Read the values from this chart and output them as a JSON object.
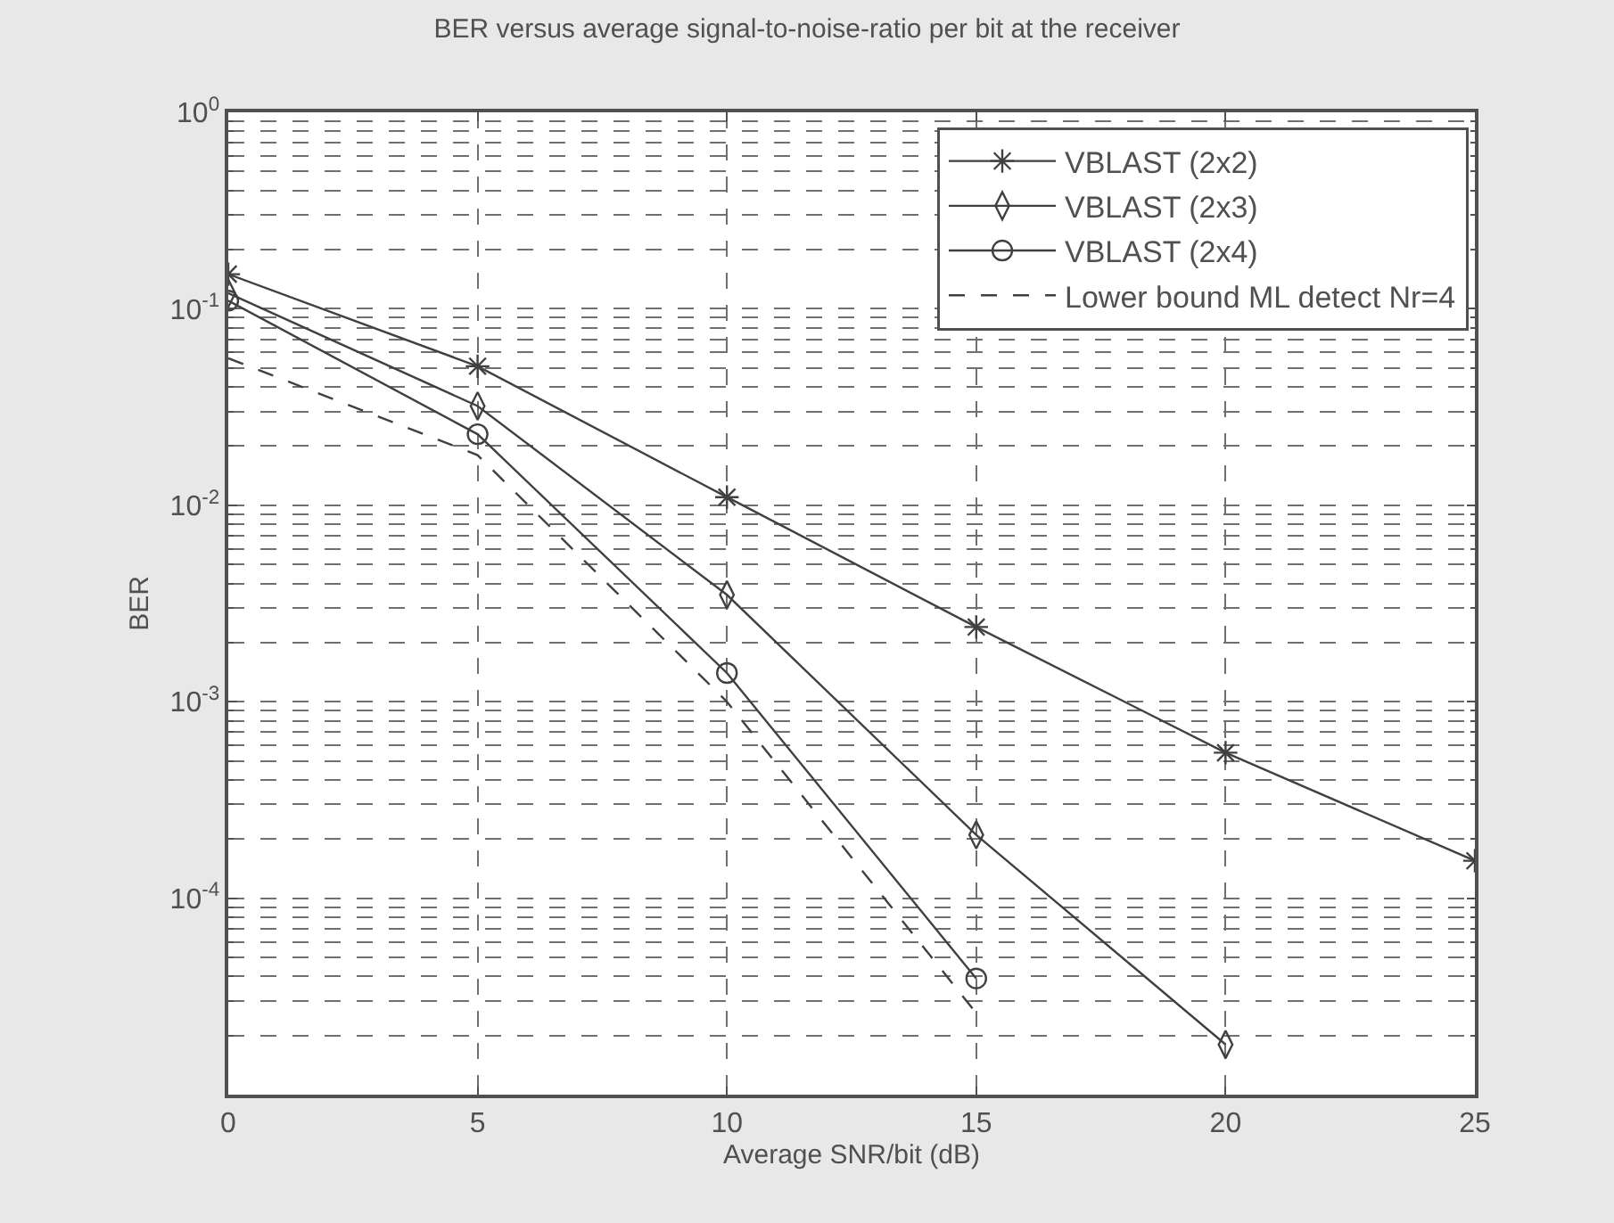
{
  "chart_data": {
    "type": "line",
    "title": "BER versus average signal-to-noise-ratio per bit at the receiver",
    "xlabel": "Average SNR/bit (dB)",
    "ylabel": "BER",
    "log": "y",
    "grid": true,
    "legend": "top right",
    "line_style": "solid",
    "xlim": [
      0,
      25
    ],
    "xticks": [
      0,
      5,
      10,
      15,
      20,
      25
    ],
    "ylim": [
      1e-05,
      1
    ],
    "yticks": [
      {
        "value": 1,
        "label": "10$^{0}$"
      },
      {
        "value": 0.1,
        "label": "10$^{-1}$"
      },
      {
        "value": 0.01,
        "label": "10$^{-2}$"
      },
      {
        "value": 0.001,
        "label": "10$^{-3}$"
      },
      {
        "value": 0.0001,
        "label": "10$^{-4}$"
      }
    ],
    "series": [
      {
        "name": "VBLAST (2x2)",
        "color": "#404040",
        "marker": "cross",
        "x": [
          0,
          5,
          10,
          15,
          20,
          25
        ],
        "values": [
          0.15,
          0.051,
          0.011,
          0.0024,
          0.00055,
          0.000155
        ]
      },
      {
        "name": "VBLAST (2x3)",
        "color": "#404040",
        "marker": "diamond",
        "x": [
          0,
          5,
          10,
          15,
          20
        ],
        "values": [
          0.12,
          0.032,
          0.0035,
          0.00021,
          1.8e-05
        ]
      },
      {
        "name": "VBLAST (2x4)",
        "color": "#404040",
        "marker": "circle",
        "x": [
          0,
          5,
          10,
          15
        ],
        "values": [
          0.11,
          0.023,
          0.0014,
          3.9e-05
        ]
      },
      {
        "name": "Lower bound ML detect Nr=4",
        "color": "#404040",
        "marker": "none",
        "line_style": "dashed",
        "x": [
          0,
          5,
          10,
          15
        ],
        "values": [
          0.056,
          0.018,
          0.001,
          2.6e-05
        ]
      }
    ]
  }
}
